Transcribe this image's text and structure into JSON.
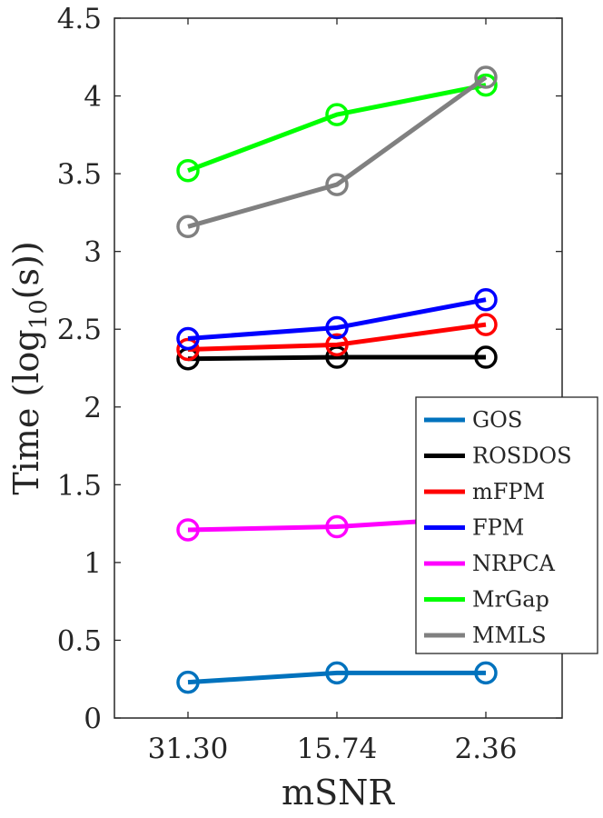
{
  "chart_data": {
    "type": "line",
    "xlabel": "mSNR",
    "ylabel": "Time (log",
    "ylabel_sub": "10",
    "ylabel_unit": "(s))",
    "categories": [
      "31.30",
      "15.74",
      "2.36"
    ],
    "ylim": [
      0,
      4.5
    ],
    "yticks": [
      "0",
      "0.5",
      "1",
      "1.5",
      "2",
      "2.5",
      "3",
      "3.5",
      "4",
      "4.5"
    ],
    "ytick_values": [
      0,
      0.5,
      1,
      1.5,
      2,
      2.5,
      3,
      3.5,
      4,
      4.5
    ],
    "grid": false,
    "legend_position": "lower-right",
    "series": [
      {
        "name": "GOS",
        "color": "#0072bd",
        "values": [
          0.23,
          0.29,
          0.29
        ]
      },
      {
        "name": "ROSDOS",
        "color": "#000000",
        "values": [
          2.31,
          2.32,
          2.32
        ]
      },
      {
        "name": "mFPM",
        "color": "#ff0000",
        "values": [
          2.37,
          2.4,
          2.53
        ]
      },
      {
        "name": "FPM",
        "color": "#0000ff",
        "values": [
          2.44,
          2.51,
          2.69
        ]
      },
      {
        "name": "NRPCA",
        "color": "#ff00ff",
        "values": [
          1.21,
          1.23,
          1.29
        ]
      },
      {
        "name": "MrGap",
        "color": "#00ff00",
        "values": [
          3.52,
          3.88,
          4.07
        ]
      },
      {
        "name": "MMLS",
        "color": "#808080",
        "values": [
          3.16,
          3.43,
          4.12
        ]
      }
    ]
  }
}
